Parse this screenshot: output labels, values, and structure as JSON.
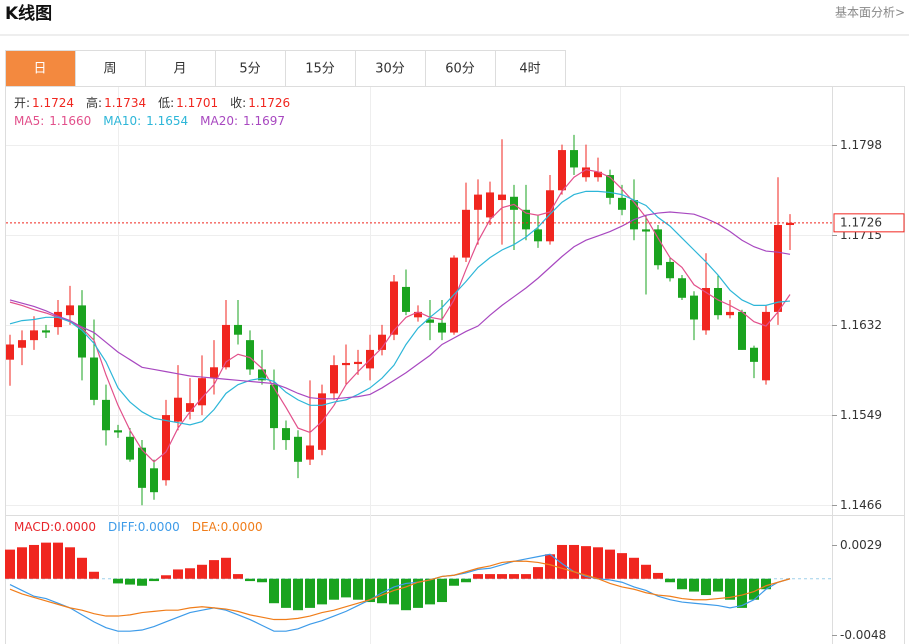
{
  "header": {
    "title": "K线图",
    "link": "基本面分析>"
  },
  "tabs": [
    "日",
    "周",
    "月",
    "5分",
    "15分",
    "30分",
    "60分",
    "4时"
  ],
  "active_tab": 0,
  "chart_data": [
    {
      "type": "candlestick",
      "summary": [
        {
          "name": "开:",
          "value": "1.1724"
        },
        {
          "name": "高:",
          "value": "1.1734"
        },
        {
          "name": "低:",
          "value": "1.1701"
        },
        {
          "name": "收:",
          "value": "1.1726"
        }
      ],
      "up_color": "#f0261f",
      "down_color": "#1aa31f",
      "open": [
        1.16,
        1.1611,
        1.1618,
        1.1627,
        1.163,
        1.1641,
        1.165,
        1.1602,
        1.1563,
        1.1535,
        1.1529,
        1.1519,
        1.15,
        1.1489,
        1.1543,
        1.1552,
        1.1558,
        1.1583,
        1.1593,
        1.1632,
        1.1618,
        1.1591,
        1.1577,
        1.1537,
        1.1529,
        1.1508,
        1.1517,
        1.1569,
        1.1595,
        1.1596,
        1.1592,
        1.1609,
        1.1623,
        1.1667,
        1.1639,
        1.1637,
        1.1634,
        1.1625,
        1.1694,
        1.1738,
        1.1731,
        1.1747,
        1.175,
        1.1738,
        1.172,
        1.1709,
        1.1756,
        1.1793,
        1.1768,
        1.1768,
        1.177,
        1.1749,
        1.1747,
        1.172,
        1.172,
        1.169,
        1.1675,
        1.1659,
        1.1627,
        1.1666,
        1.1641,
        1.1644,
        1.1611,
        1.1581,
        1.1644,
        1.1724
      ],
      "high": [
        1.1623,
        1.1627,
        1.164,
        1.1632,
        1.1655,
        1.1668,
        1.1664,
        1.1637,
        1.1577,
        1.154,
        1.1537,
        1.1526,
        1.1508,
        1.1563,
        1.1595,
        1.1583,
        1.1604,
        1.1618,
        1.1655,
        1.1655,
        1.1627,
        1.1609,
        1.1591,
        1.1544,
        1.1535,
        1.1581,
        1.1577,
        1.1604,
        1.1614,
        1.1609,
        1.1623,
        1.1632,
        1.1678,
        1.1683,
        1.165,
        1.1655,
        1.1655,
        1.1696,
        1.1763,
        1.1766,
        1.1764,
        1.1803,
        1.1761,
        1.1761,
        1.1733,
        1.177,
        1.1798,
        1.1807,
        1.1798,
        1.1786,
        1.1775,
        1.1761,
        1.1766,
        1.1733,
        1.1724,
        1.1694,
        1.1678,
        1.1663,
        1.1698,
        1.1678,
        1.1655,
        1.1646,
        1.1613,
        1.165,
        1.1768,
        1.1734
      ],
      "low": [
        1.1576,
        1.1595,
        1.1609,
        1.162,
        1.1623,
        1.1632,
        1.1581,
        1.1558,
        1.1521,
        1.1528,
        1.1506,
        1.1466,
        1.1471,
        1.1484,
        1.1535,
        1.1545,
        1.1549,
        1.1568,
        1.1591,
        1.1614,
        1.1586,
        1.1577,
        1.1517,
        1.1517,
        1.1491,
        1.1503,
        1.1512,
        1.1563,
        1.1577,
        1.1586,
        1.1581,
        1.1604,
        1.1618,
        1.1641,
        1.1635,
        1.1618,
        1.1618,
        1.1623,
        1.169,
        1.1706,
        1.1724,
        1.1706,
        1.1701,
        1.171,
        1.1703,
        1.1706,
        1.1752,
        1.177,
        1.1764,
        1.1764,
        1.1743,
        1.1733,
        1.171,
        1.166,
        1.1683,
        1.1672,
        1.1655,
        1.1618,
        1.1623,
        1.1637,
        1.1638,
        1.1609,
        1.1583,
        1.1577,
        1.1632,
        1.1701
      ],
      "close": [
        1.1614,
        1.1618,
        1.1627,
        1.1625,
        1.1644,
        1.165,
        1.1602,
        1.1563,
        1.1535,
        1.1533,
        1.1508,
        1.1482,
        1.1478,
        1.1549,
        1.1565,
        1.156,
        1.1583,
        1.1593,
        1.1632,
        1.1623,
        1.1591,
        1.1581,
        1.1537,
        1.1526,
        1.1506,
        1.1521,
        1.1569,
        1.1595,
        1.1597,
        1.1598,
        1.1609,
        1.1623,
        1.1672,
        1.1644,
        1.1644,
        1.1634,
        1.1625,
        1.1694,
        1.1738,
        1.1752,
        1.1754,
        1.1752,
        1.1738,
        1.172,
        1.1709,
        1.1756,
        1.1793,
        1.1777,
        1.1777,
        1.1773,
        1.1749,
        1.1738,
        1.172,
        1.1718,
        1.1687,
        1.1675,
        1.1657,
        1.1637,
        1.1666,
        1.1641,
        1.1644,
        1.1609,
        1.1598,
        1.1644,
        1.1724,
        1.1726
      ],
      "series": [
        {
          "name": "MA5:",
          "current": "1.1660",
          "color": "#e2508b",
          "values": [
            1.1653,
            1.165,
            1.1646,
            1.1643,
            1.1639,
            1.1635,
            1.1629,
            1.1618,
            1.1586,
            1.1558,
            1.1535,
            1.1517,
            1.1506,
            1.1515,
            1.1537,
            1.1552,
            1.1565,
            1.1577,
            1.1598,
            1.1605,
            1.1602,
            1.1592,
            1.1574,
            1.1556,
            1.1537,
            1.1533,
            1.1543,
            1.1558,
            1.1577,
            1.1589,
            1.16,
            1.1611,
            1.1627,
            1.1639,
            1.1644,
            1.1639,
            1.1637,
            1.1655,
            1.1683,
            1.1709,
            1.1729,
            1.174,
            1.1743,
            1.1735,
            1.1733,
            1.1736,
            1.1755,
            1.1768,
            1.1775,
            1.1773,
            1.1768,
            1.1757,
            1.1745,
            1.1731,
            1.1712,
            1.1694,
            1.1685,
            1.1669,
            1.1662,
            1.1655,
            1.165,
            1.1644,
            1.1635,
            1.1631,
            1.1644,
            1.166
          ]
        },
        {
          "name": "MA10:",
          "current": "1.1654",
          "color": "#2db6d8",
          "values": [
            1.1633,
            1.1636,
            1.1637,
            1.1639,
            1.1639,
            1.1635,
            1.1627,
            1.1615,
            1.1598,
            1.1574,
            1.1561,
            1.1552,
            1.1546,
            1.1544,
            1.1542,
            1.154,
            1.1543,
            1.1554,
            1.1569,
            1.1577,
            1.1581,
            1.1583,
            1.158,
            1.157,
            1.1563,
            1.1558,
            1.1558,
            1.1561,
            1.1563,
            1.1568,
            1.1574,
            1.1583,
            1.1595,
            1.1614,
            1.1629,
            1.1639,
            1.1648,
            1.166,
            1.1672,
            1.1685,
            1.1694,
            1.1701,
            1.1706,
            1.1713,
            1.1722,
            1.1734,
            1.1745,
            1.1752,
            1.1755,
            1.1755,
            1.1754,
            1.1752,
            1.1747,
            1.1742,
            1.1731,
            1.1723,
            1.1712,
            1.1701,
            1.169,
            1.1678,
            1.1664,
            1.1655,
            1.165,
            1.165,
            1.1653,
            1.1654
          ]
        },
        {
          "name": "MA20:",
          "current": "1.1697",
          "color": "#a848c0",
          "values": [
            1.1655,
            1.1652,
            1.1649,
            1.1645,
            1.164,
            1.1636,
            1.163,
            1.1625,
            1.1616,
            1.1607,
            1.16,
            1.1593,
            1.1591,
            1.1589,
            1.1587,
            1.1585,
            1.1584,
            1.1583,
            1.1582,
            1.1581,
            1.158,
            1.1579,
            1.1578,
            1.1574,
            1.1569,
            1.1565,
            1.1564,
            1.1564,
            1.1565,
            1.1566,
            1.1568,
            1.1574,
            1.1581,
            1.1588,
            1.1596,
            1.1604,
            1.1614,
            1.162,
            1.1626,
            1.1631,
            1.1641,
            1.165,
            1.1658,
            1.1666,
            1.1675,
            1.1685,
            1.1695,
            1.1704,
            1.171,
            1.1714,
            1.1718,
            1.1723,
            1.1729,
            1.1733,
            1.1735,
            1.1736,
            1.1735,
            1.1734,
            1.173,
            1.1725,
            1.1718,
            1.171,
            1.1704,
            1.17,
            1.1699,
            1.1697
          ]
        }
      ],
      "ylim": [
        1.1457,
        1.1852
      ],
      "yticks": [
        1.1798,
        1.1715,
        1.1632,
        1.1549,
        1.1466
      ],
      "grid": true,
      "last_price": 1.1726,
      "last_price_color": "#f0261f"
    },
    {
      "type": "macd",
      "up_color": "#f0261f",
      "down_color": "#1aa31f",
      "series": [
        {
          "name": "MACD:",
          "current": "0.0000",
          "color": "#e8262b",
          "kind": "bar",
          "values": [
            0.0025,
            0.0027,
            0.0029,
            0.0031,
            0.0031,
            0.0027,
            0.0018,
            0.0006,
            0.0,
            -0.0004,
            -0.0005,
            -0.0006,
            -0.0002,
            0.0003,
            0.0008,
            0.0009,
            0.0012,
            0.0016,
            0.0018,
            0.0004,
            -0.0002,
            -0.0003,
            -0.0021,
            -0.0025,
            -0.0027,
            -0.0025,
            -0.0022,
            -0.0018,
            -0.0016,
            -0.0018,
            -0.002,
            -0.0021,
            -0.0022,
            -0.0027,
            -0.0025,
            -0.0022,
            -0.002,
            -0.0006,
            -0.0003,
            0.0004,
            0.0004,
            0.0004,
            0.0004,
            0.0004,
            0.001,
            0.0021,
            0.0029,
            0.0029,
            0.0028,
            0.0027,
            0.0025,
            0.0022,
            0.0018,
            0.0012,
            0.0005,
            -0.0003,
            -0.0009,
            -0.0011,
            -0.0014,
            -0.0011,
            -0.0018,
            -0.0025,
            -0.0018,
            -0.0009,
            0,
            0
          ]
        },
        {
          "name": "DIFF:",
          "current": "0.0000",
          "color": "#3d9be9",
          "kind": "line",
          "values": [
            -0.0005,
            -0.001,
            -0.0015,
            -0.0017,
            -0.0021,
            -0.0025,
            -0.0031,
            -0.0037,
            -0.0042,
            -0.0045,
            -0.0045,
            -0.0044,
            -0.0041,
            -0.0037,
            -0.0033,
            -0.0029,
            -0.0027,
            -0.0025,
            -0.0027,
            -0.0031,
            -0.0035,
            -0.004,
            -0.0045,
            -0.0045,
            -0.0043,
            -0.0039,
            -0.0036,
            -0.0032,
            -0.0028,
            -0.0023,
            -0.0018,
            -0.0012,
            -0.0007,
            -0.0004,
            -0.0003,
            -0.0001,
            0.0002,
            0.0003,
            0.0005,
            0.0008,
            0.0009,
            0.0012,
            0.0015,
            0.0017,
            0.0019,
            0.0021,
            0.0013,
            0.0006,
            0.0002,
            0.0,
            -0.0001,
            -0.0003,
            -0.0007,
            -0.001,
            -0.0015,
            -0.0018,
            -0.002,
            -0.0021,
            -0.0022,
            -0.0023,
            -0.0025,
            -0.0023,
            -0.0018,
            -0.0009,
            -0.0003,
            0.0
          ]
        },
        {
          "name": "DEA:",
          "current": "0.0000",
          "color": "#f07d1a",
          "kind": "line",
          "values": [
            -0.0009,
            -0.0013,
            -0.0016,
            -0.0019,
            -0.0022,
            -0.0025,
            -0.0027,
            -0.003,
            -0.0032,
            -0.0032,
            -0.0031,
            -0.0029,
            -0.0028,
            -0.0027,
            -0.0027,
            -0.0025,
            -0.0024,
            -0.0025,
            -0.0026,
            -0.0028,
            -0.0031,
            -0.0033,
            -0.0035,
            -0.0035,
            -0.0034,
            -0.0032,
            -0.0029,
            -0.0027,
            -0.0024,
            -0.0021,
            -0.0018,
            -0.0014,
            -0.001,
            -0.0007,
            -0.0003,
            -0.0001,
            0.0002,
            0.0003,
            0.0006,
            0.0009,
            0.0011,
            0.0014,
            0.0015,
            0.0015,
            0.0014,
            0.0012,
            0.0009,
            0.0006,
            0.0003,
            0.0,
            -0.0004,
            -0.0007,
            -0.0009,
            -0.0012,
            -0.0014,
            -0.0015,
            -0.0017,
            -0.0018,
            -0.0018,
            -0.0017,
            -0.0016,
            -0.0014,
            -0.0011,
            -0.0006,
            -0.0003,
            0.0
          ]
        }
      ],
      "ylim": [
        -0.0056,
        0.0053
      ],
      "yticks": [
        0.0029,
        -0.0048
      ],
      "zero_line_color": "#9fd0ea"
    }
  ]
}
